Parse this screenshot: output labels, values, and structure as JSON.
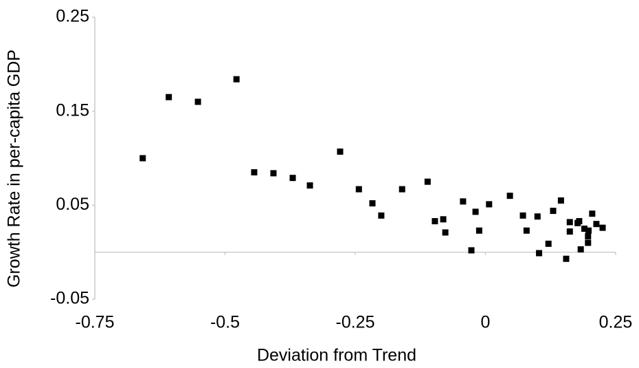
{
  "chart_data": {
    "type": "scatter",
    "x_label": "Deviation from Trend",
    "y_label": "Growth Rate in per-capita GDP",
    "color": "#000000",
    "xlim": [
      -0.75,
      0.25
    ],
    "xticks": [
      -0.75,
      -0.5,
      -0.25,
      0,
      0.25
    ],
    "ylim": [
      -0.05,
      0.25
    ],
    "yticks": [
      -0.05,
      0.05,
      0.15,
      0.25
    ],
    "grid": false,
    "x": [
      -0.658,
      -0.608,
      -0.552,
      -0.478,
      -0.444,
      -0.407,
      -0.37,
      -0.337,
      -0.279,
      -0.243,
      -0.217,
      -0.2,
      -0.16,
      -0.111,
      -0.097,
      -0.081,
      -0.077,
      -0.043,
      -0.027,
      -0.019,
      -0.012,
      0.007,
      0.047,
      0.072,
      0.079,
      0.1,
      0.103,
      0.121,
      0.13,
      0.145,
      0.155,
      0.162,
      0.162,
      0.177,
      0.18,
      0.183,
      0.19,
      0.197,
      0.197,
      0.198,
      0.205,
      0.213,
      0.225
    ],
    "values": [
      0.1,
      0.165,
      0.16,
      0.184,
      0.085,
      0.084,
      0.079,
      0.071,
      0.107,
      0.067,
      0.052,
      0.039,
      0.067,
      0.075,
      0.033,
      0.035,
      0.021,
      0.054,
      0.002,
      0.043,
      0.023,
      0.051,
      0.06,
      0.039,
      0.023,
      0.038,
      -0.001,
      0.009,
      0.044,
      0.055,
      -0.007,
      0.032,
      0.022,
      0.031,
      0.033,
      0.003,
      0.025,
      0.017,
      0.01,
      0.023,
      0.041,
      0.03,
      0.026
    ]
  }
}
